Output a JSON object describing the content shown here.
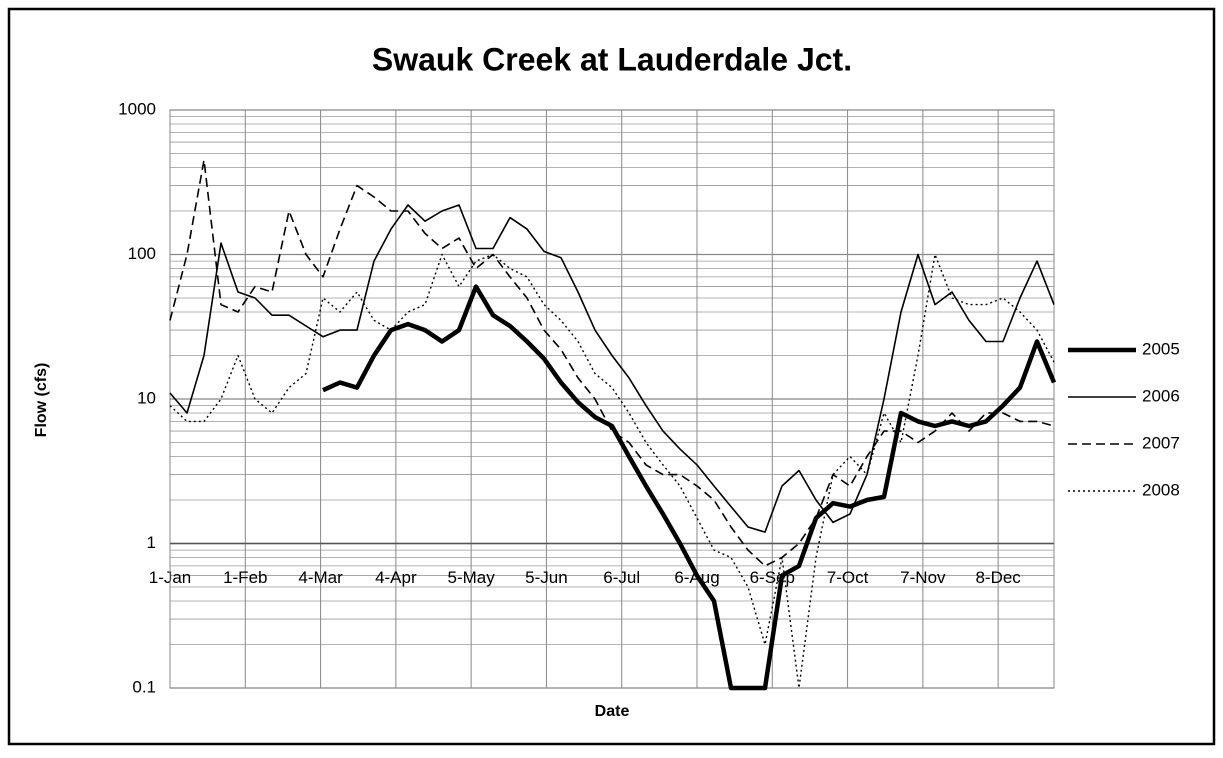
{
  "chart_data": {
    "type": "line",
    "title": "Swauk Creek at Lauderdale Jct.",
    "x_label": "Date",
    "y_label": "Flow (cfs)",
    "x": [
      1,
      8,
      15,
      22,
      29,
      36,
      43,
      50,
      57,
      64,
      71,
      78,
      85,
      92,
      99,
      106,
      113,
      120,
      127,
      134,
      141,
      148,
      155,
      162,
      169,
      176,
      183,
      190,
      197,
      204,
      211,
      218,
      225,
      232,
      239,
      246,
      253,
      260,
      267,
      274,
      281,
      288,
      295,
      302,
      309,
      316,
      323,
      330,
      337,
      344,
      351,
      358,
      365
    ],
    "xlim": [
      1,
      365
    ],
    "xticks": [
      {
        "value": 1,
        "label": "1-Jan"
      },
      {
        "value": 32,
        "label": "1-Feb"
      },
      {
        "value": 63,
        "label": "4-Mar"
      },
      {
        "value": 94,
        "label": "4-Apr"
      },
      {
        "value": 125,
        "label": "5-May"
      },
      {
        "value": 156,
        "label": "5-Jun"
      },
      {
        "value": 187,
        "label": "6-Jul"
      },
      {
        "value": 218,
        "label": "6-Aug"
      },
      {
        "value": 249,
        "label": "6-Sep"
      },
      {
        "value": 280,
        "label": "7-Oct"
      },
      {
        "value": 311,
        "label": "7-Nov"
      },
      {
        "value": 342,
        "label": "8-Dec"
      }
    ],
    "ylim": [
      0.1,
      1000
    ],
    "yticks": [
      0.1,
      1,
      10,
      100,
      1000
    ],
    "log_scale": true,
    "grid": true,
    "minor_grid": true,
    "legend": "right",
    "series": [
      {
        "name": "2005",
        "color": "#000000",
        "width": 4.5,
        "dash": "solid",
        "values": [
          null,
          null,
          null,
          null,
          null,
          null,
          null,
          null,
          null,
          11.5,
          13,
          12,
          20,
          30,
          33,
          30,
          25,
          30,
          60,
          38,
          32,
          25,
          19,
          13,
          9.5,
          7.5,
          6.5,
          4,
          2.5,
          1.6,
          1,
          0.6,
          0.4,
          0.1,
          0.1,
          0.1,
          0.6,
          0.7,
          1.5,
          1.9,
          1.8,
          2,
          2.1,
          8,
          7,
          6.5,
          7,
          6.5,
          7,
          9,
          12,
          25,
          13
        ]
      },
      {
        "name": "2006",
        "color": "#000000",
        "width": 1.6,
        "dash": "solid",
        "values": [
          11,
          8,
          20,
          120,
          55,
          50,
          38,
          38,
          32,
          27,
          30,
          30,
          90,
          150,
          220,
          170,
          200,
          220,
          110,
          110,
          180,
          150,
          105,
          95,
          55,
          30,
          20,
          14,
          9,
          6,
          4.5,
          3.5,
          2.5,
          1.8,
          1.3,
          1.2,
          2.5,
          3.2,
          2,
          1.4,
          1.6,
          3,
          10,
          40,
          100,
          45,
          55,
          35,
          25,
          25,
          50,
          90,
          45
        ]
      },
      {
        "name": "2007",
        "color": "#000000",
        "width": 1.6,
        "dash": "dashed",
        "values": [
          35,
          100,
          450,
          45,
          40,
          60,
          55,
          200,
          100,
          70,
          150,
          300,
          250,
          200,
          200,
          140,
          110,
          130,
          80,
          100,
          70,
          50,
          30,
          22,
          14,
          10,
          6,
          5,
          3.5,
          3,
          3,
          2.5,
          2,
          1.3,
          0.9,
          0.7,
          0.8,
          1,
          1.5,
          3,
          2.5,
          4,
          6,
          6,
          5,
          6,
          8,
          6,
          8,
          8,
          7,
          7,
          6.5
        ]
      },
      {
        "name": "2008",
        "color": "#000000",
        "width": 1.4,
        "dash": "dotted",
        "values": [
          9,
          7,
          7,
          10,
          20,
          10,
          8,
          12,
          15,
          50,
          40,
          55,
          35,
          30,
          40,
          45,
          100,
          60,
          90,
          100,
          80,
          70,
          45,
          35,
          25,
          15,
          12,
          8,
          5,
          3.5,
          2.5,
          1.5,
          0.9,
          0.8,
          0.5,
          0.2,
          0.8,
          0.1,
          0.8,
          3,
          4,
          3,
          8,
          5,
          20,
          100,
          50,
          45,
          45,
          50,
          40,
          30,
          18
        ]
      }
    ]
  }
}
